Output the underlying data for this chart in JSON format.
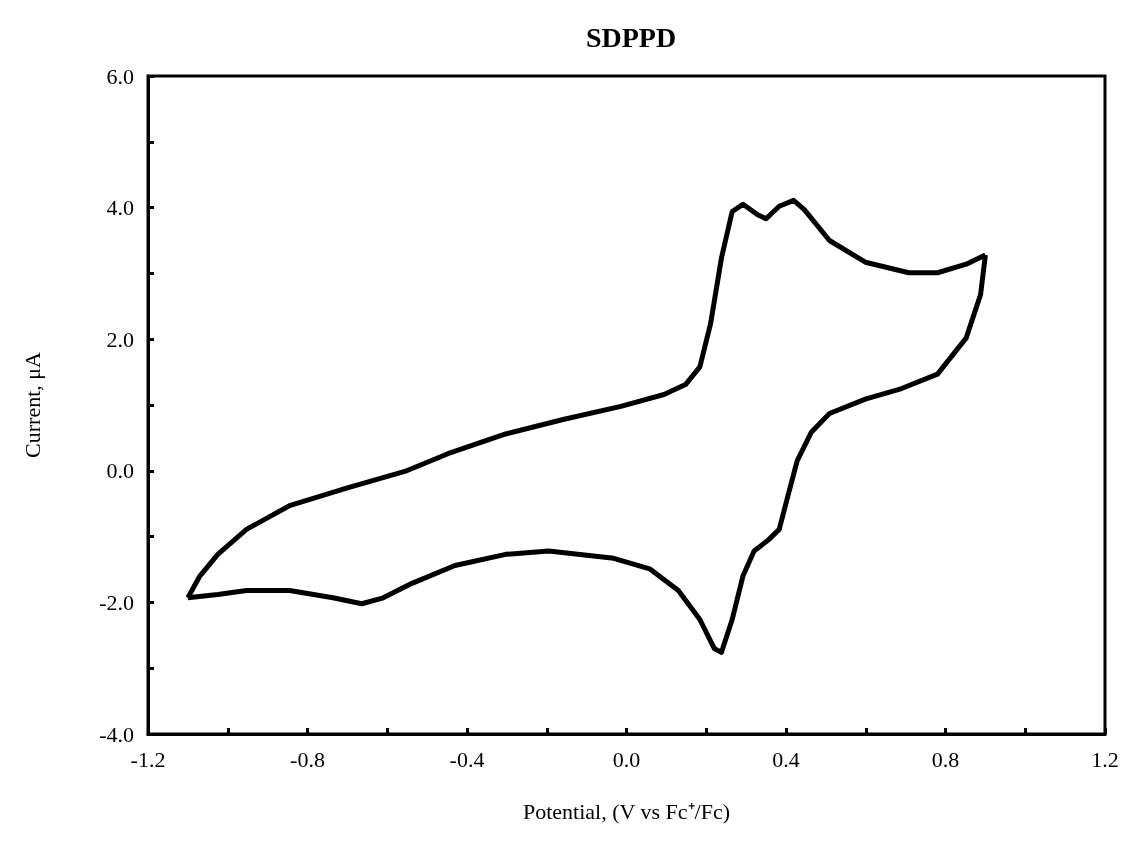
{
  "chart_data": {
    "type": "line",
    "title": "SDPPD",
    "xlabel": "Potential, (V vs Fc⁺/Fc)",
    "ylabel": "Current, μA",
    "series": [
      {
        "color": "#000000",
        "x": [
          -1.1,
          -1.07,
          -1.025,
          -0.953,
          -0.845,
          -0.7,
          -0.556,
          -0.448,
          -0.303,
          -0.159,
          -0.014,
          0.094,
          0.148,
          0.184,
          0.211,
          0.238,
          0.265,
          0.292,
          0.329,
          0.35,
          0.383,
          0.419,
          0.446,
          0.509,
          0.599,
          0.708,
          0.78,
          0.852,
          0.9
        ],
        "values": [
          -1.93,
          -1.6,
          -1.27,
          -0.89,
          -0.53,
          -0.26,
          -0.01,
          0.26,
          0.56,
          0.78,
          0.98,
          1.16,
          1.31,
          1.58,
          2.24,
          3.23,
          3.94,
          4.05,
          3.89,
          3.83,
          4.02,
          4.11,
          3.97,
          3.5,
          3.17,
          3.01,
          3.01,
          3.14,
          3.28
        ]
      },
      {
        "color": "#000000",
        "x": [
          0.9,
          0.888,
          0.852,
          0.78,
          0.69,
          0.599,
          0.509,
          0.464,
          0.428,
          0.404,
          0.383,
          0.356,
          0.32,
          0.292,
          0.265,
          0.238,
          0.22,
          0.184,
          0.13,
          0.058,
          -0.032,
          -0.195,
          -0.303,
          -0.43,
          -0.538,
          -0.61,
          -0.664,
          -0.736,
          -0.845,
          -0.953,
          -1.025,
          -1.1
        ],
        "values": [
          3.28,
          2.68,
          2.02,
          1.47,
          1.25,
          1.09,
          0.87,
          0.59,
          0.15,
          -0.4,
          -0.89,
          -1.05,
          -1.22,
          -1.6,
          -2.26,
          -2.76,
          -2.7,
          -2.26,
          -1.82,
          -1.49,
          -1.33,
          -1.22,
          -1.27,
          -1.44,
          -1.71,
          -1.93,
          -2.02,
          -1.93,
          -1.82,
          -1.82,
          -1.88,
          -1.93
        ]
      }
    ],
    "xlim": [
      -1.2,
      1.2
    ],
    "ylim": [
      -4,
      6
    ],
    "xticks": [
      {
        "value": -1.2,
        "label": "-1.2"
      },
      {
        "value": -1.0,
        "label": null
      },
      {
        "value": -0.8,
        "label": "-0.8"
      },
      {
        "value": -0.6,
        "label": null
      },
      {
        "value": -0.4,
        "label": "-0.4"
      },
      {
        "value": -0.2,
        "label": null
      },
      {
        "value": 0,
        "label": "0.0"
      },
      {
        "value": 0.2,
        "label": null
      },
      {
        "value": 0.4,
        "label": "0.4"
      },
      {
        "value": 0.6,
        "label": null
      },
      {
        "value": 0.8,
        "label": "0.8"
      },
      {
        "value": 1.0,
        "label": null
      },
      {
        "value": 1.2,
        "label": "1.2"
      }
    ],
    "yticks": [
      {
        "value": -4,
        "label": "-4.0"
      },
      {
        "value": -3,
        "label": null
      },
      {
        "value": -2,
        "label": "-2.0"
      },
      {
        "value": -1,
        "label": null
      },
      {
        "value": 0,
        "label": "0.0"
      },
      {
        "value": 1,
        "label": null
      },
      {
        "value": 2,
        "label": "2.0"
      },
      {
        "value": 3,
        "label": null
      },
      {
        "value": 4,
        "label": "4.0"
      },
      {
        "value": 5,
        "label": null
      },
      {
        "value": 6,
        "label": "6.0"
      }
    ],
    "grid": false,
    "marker": "none",
    "line_style": "solid"
  }
}
